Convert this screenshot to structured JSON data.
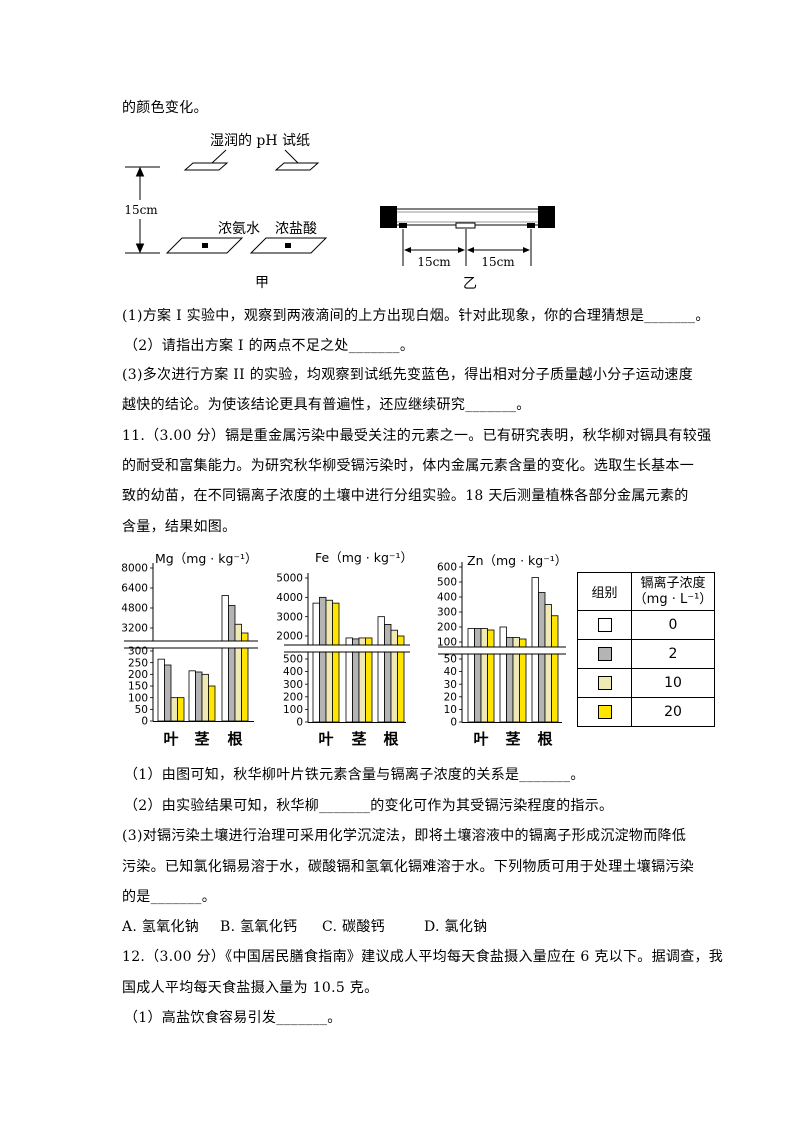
{
  "q10": {
    "intro_tail": "的颜色变化。",
    "figure_jia": {
      "ph_paper_label": "湿润的 pH 试纸",
      "distance": "15cm",
      "left_liquid": "浓氨水",
      "right_liquid": "浓盐酸",
      "caption": "甲"
    },
    "figure_yi": {
      "distance_left": "15cm",
      "distance_right": "15cm",
      "caption": "乙"
    },
    "sub1": "(1)方案 I 实验中，观察到两液滴间的上方出现白烟。针对此现象，你的合理猜想是_______。",
    "sub2": "（2）请指出方案 I 的两点不足之处_______。",
    "sub3": [
      "(3)多次进行方案 II 的实验，均观察到试纸先变蓝色，得出相对分子质量越小分子运动速度",
      "越快的结论。为使该结论更具有普遍性，还应继续研究_______。"
    ]
  },
  "q11": {
    "stem": [
      "11.（3.00 分）镉是重金属污染中最受关注的元素之一。已有研究表明，秋华柳对镉具有较强",
      "的耐受和富集能力。为研究秋华柳受镉污染时，体内金属元素含量的变化。选取生长基本一",
      "致的幼苗，在不同镉离子浓度的土壤中进行分组实验。18 天后测量植株各部分金属元素的",
      "含量，结果如图。"
    ],
    "legend": {
      "col_group": "组别",
      "col_conc_line1": "镉离子浓度",
      "col_conc_line2": "（mg · L⁻¹）",
      "rows": [
        {
          "color": "#ffffff",
          "value": "0"
        },
        {
          "color": "#b4b4b4",
          "value": "2"
        },
        {
          "color": "#efe9b4",
          "value": "10"
        },
        {
          "color": "#ffe500",
          "value": "20"
        }
      ]
    },
    "sub1": "（1）由图可知，秋华柳叶片铁元素含量与镉离子浓度的关系是_______。",
    "sub2": "（2）由实验结果可知，秋华柳_______的变化可作为其受镉污染程度的指示。",
    "sub3": [
      "(3)对镉污染土壤进行治理可采用化学沉淀法，即将土壤溶液中的镉离子形成沉淀物而降低",
      "污染。已知氯化镉易溶于水，碳酸镉和氢氧化镉难溶于水。下列物质可用于处理土壤镉污染",
      "的是_______。"
    ],
    "options": [
      "A. 氢氧化钠",
      "B. 氢氧化钙",
      "C. 碳酸钙",
      "D. 氯化钠"
    ]
  },
  "q12": {
    "stem": [
      "12.（3.00 分）《中国居民膳食指南》建议成人平均每天食盐摄入量应在 6 克以下。据调查，我",
      "国成人平均每天食盐摄入量为 10.5 克。"
    ],
    "sub1": "（1）高盐饮食容易引发_______。"
  },
  "chart_data": [
    {
      "type": "bar",
      "title": "Mg（mg · kg⁻¹）",
      "categories": [
        "叶",
        "茎",
        "根"
      ],
      "broken_y_axis": true,
      "y_ticks_upper": [
        "8000",
        "6400",
        "4800",
        "3200"
      ],
      "y_ticks_lower": [
        "300",
        "250",
        "200",
        "150",
        "100",
        "50",
        "0"
      ],
      "series": [
        {
          "name": "0",
          "color": "#ffffff",
          "values": [
            265,
            215,
            5800
          ]
        },
        {
          "name": "2",
          "color": "#b4b4b4",
          "values": [
            240,
            210,
            5000
          ]
        },
        {
          "name": "10",
          "color": "#efe9b4",
          "values": [
            100,
            200,
            3500
          ]
        },
        {
          "name": "20",
          "color": "#ffe500",
          "values": [
            100,
            150,
            2800
          ]
        }
      ]
    },
    {
      "type": "bar",
      "title": "Fe（mg · kg⁻¹）",
      "categories": [
        "叶",
        "茎",
        "根"
      ],
      "broken_y_axis": true,
      "y_ticks_upper": [
        "5000",
        "4000",
        "3000",
        "2000"
      ],
      "y_ticks_lower": [
        "500",
        "400",
        "300",
        "200",
        "100",
        "0"
      ],
      "series": [
        {
          "name": "0",
          "color": "#ffffff",
          "values": [
            3700,
            1900,
            3000
          ]
        },
        {
          "name": "2",
          "color": "#b4b4b4",
          "values": [
            4000,
            1850,
            2600
          ]
        },
        {
          "name": "10",
          "color": "#efe9b4",
          "values": [
            3850,
            1900,
            2300
          ]
        },
        {
          "name": "20",
          "color": "#ffe500",
          "values": [
            3700,
            1900,
            2000
          ]
        }
      ]
    },
    {
      "type": "bar",
      "title": "Zn（mg · kg⁻¹）",
      "categories": [
        "叶",
        "茎",
        "根"
      ],
      "broken_y_axis": true,
      "y_ticks_upper": [
        "600",
        "500",
        "400",
        "300",
        "200",
        "100"
      ],
      "y_ticks_lower": [
        "50",
        "40",
        "30",
        "20",
        "10",
        "0"
      ],
      "series": [
        {
          "name": "0",
          "color": "#ffffff",
          "values": [
            190,
            200,
            530
          ]
        },
        {
          "name": "2",
          "color": "#b4b4b4",
          "values": [
            190,
            130,
            430
          ]
        },
        {
          "name": "10",
          "color": "#efe9b4",
          "values": [
            190,
            130,
            350
          ]
        },
        {
          "name": "20",
          "color": "#ffe500",
          "values": [
            180,
            120,
            275
          ]
        }
      ]
    }
  ]
}
